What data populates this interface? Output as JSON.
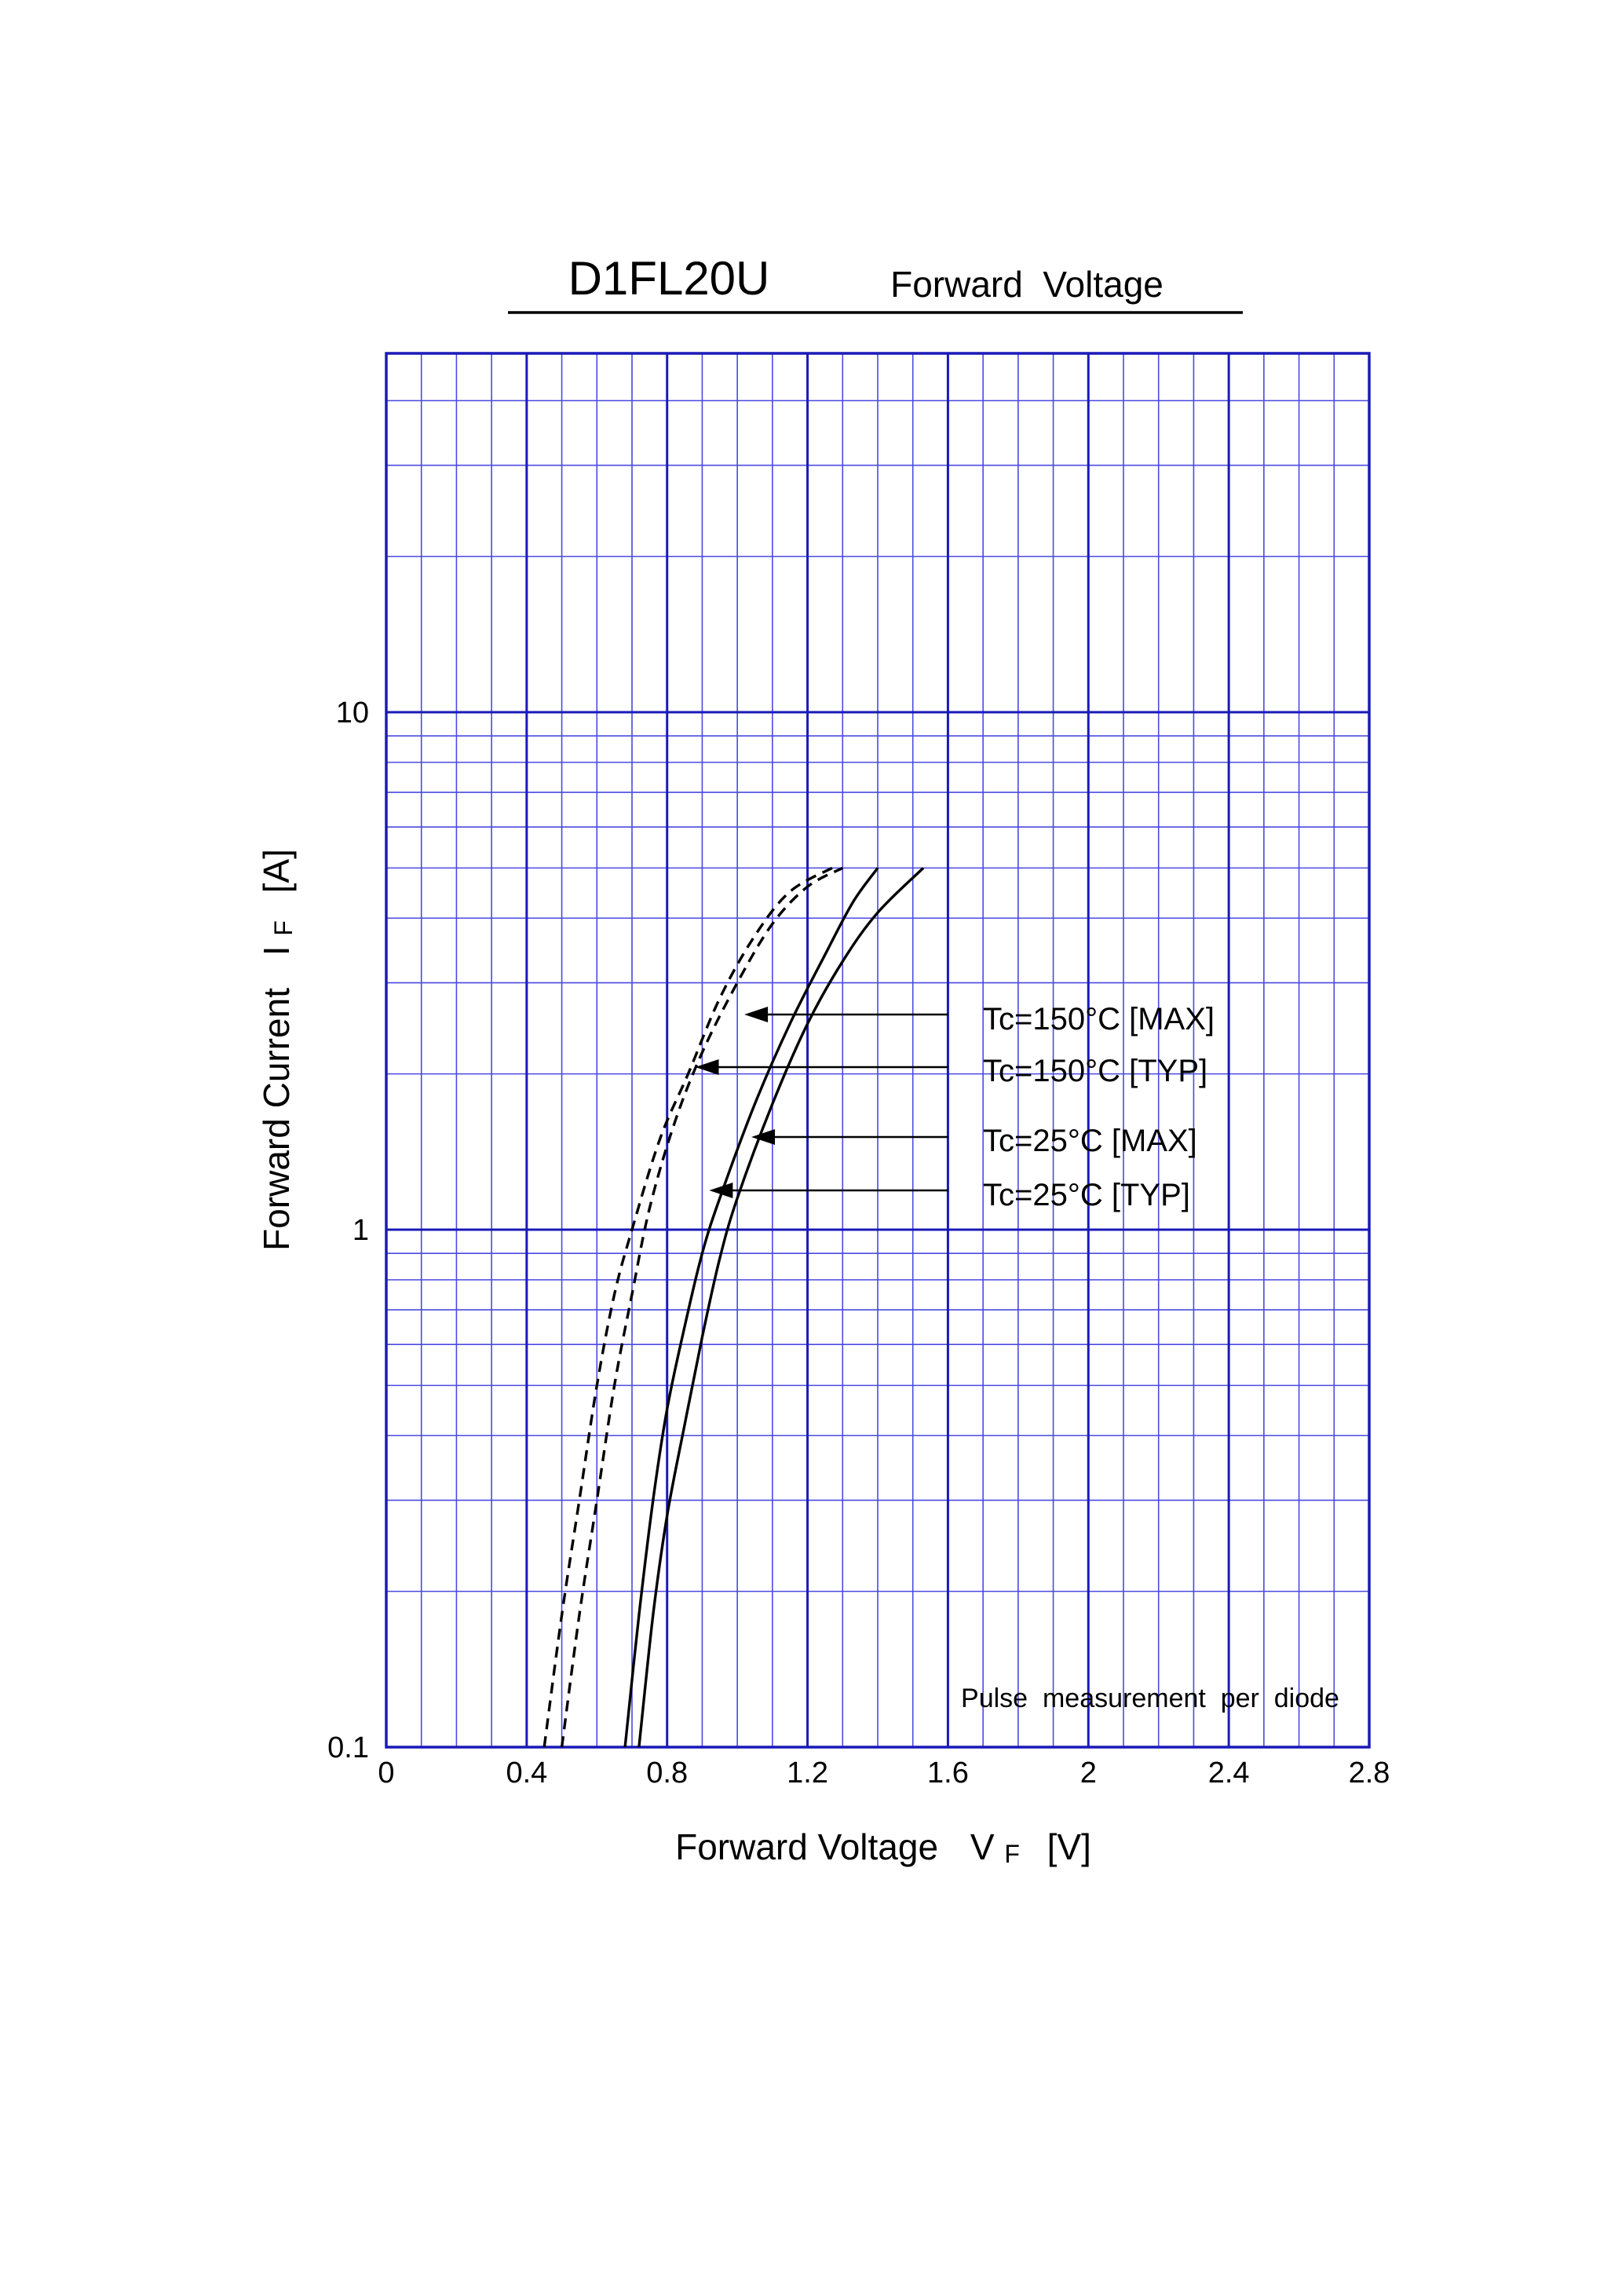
{
  "chart_data": {
    "type": "line",
    "title": "D1FL20U",
    "subtitle": "Forward  Voltage",
    "xlabel": "Forward Voltage",
    "xlabel_symbol": "V",
    "xlabel_subscript": "F",
    "xlabel_unit": "[V]",
    "ylabel": "Forward Current",
    "ylabel_symbol": "I",
    "ylabel_subscript": "F",
    "ylabel_unit": "[A]",
    "xlim": [
      0,
      2.8
    ],
    "ylim": [
      0.1,
      50
    ],
    "yscale": "log",
    "grid": true,
    "x_ticks": [
      "0",
      "0.4",
      "0.8",
      "1.2",
      "1.6",
      "2",
      "2.4",
      "2.8"
    ],
    "y_ticks": [
      "0.1",
      "1",
      "10"
    ],
    "note": "Pulse  measurement  per  diode",
    "series": [
      {
        "name": "Tc=150°C [MAX]",
        "style": "dashed",
        "points": [
          [
            0.5,
            0.1
          ],
          [
            0.55,
            0.18
          ],
          [
            0.6,
            0.3
          ],
          [
            0.65,
            0.5
          ],
          [
            0.7,
            0.75
          ],
          [
            0.75,
            1.1
          ],
          [
            0.82,
            1.6
          ],
          [
            0.9,
            2.2
          ],
          [
            1.0,
            3.0
          ],
          [
            1.1,
            3.9
          ],
          [
            1.2,
            4.6
          ],
          [
            1.3,
            5.0
          ]
        ]
      },
      {
        "name": "Tc=150°C [TYP]",
        "style": "dashed",
        "points": [
          [
            0.45,
            0.1
          ],
          [
            0.5,
            0.18
          ],
          [
            0.55,
            0.3
          ],
          [
            0.6,
            0.5
          ],
          [
            0.65,
            0.75
          ],
          [
            0.7,
            1.0
          ],
          [
            0.78,
            1.5
          ],
          [
            0.86,
            2.0
          ],
          [
            0.95,
            2.8
          ],
          [
            1.05,
            3.7
          ],
          [
            1.15,
            4.5
          ],
          [
            1.27,
            5.0
          ]
        ]
      },
      {
        "name": "Tc=25°C [MAX]",
        "style": "solid",
        "points": [
          [
            0.72,
            0.1
          ],
          [
            0.76,
            0.18
          ],
          [
            0.8,
            0.28
          ],
          [
            0.85,
            0.42
          ],
          [
            0.9,
            0.62
          ],
          [
            0.95,
            0.88
          ],
          [
            1.0,
            1.15
          ],
          [
            1.1,
            1.75
          ],
          [
            1.2,
            2.5
          ],
          [
            1.3,
            3.3
          ],
          [
            1.4,
            4.1
          ],
          [
            1.53,
            5.0
          ]
        ]
      },
      {
        "name": "Tc=25°C [TYP]",
        "style": "solid",
        "points": [
          [
            0.68,
            0.1
          ],
          [
            0.72,
            0.18
          ],
          [
            0.76,
            0.3
          ],
          [
            0.8,
            0.45
          ],
          [
            0.85,
            0.65
          ],
          [
            0.9,
            0.9
          ],
          [
            0.95,
            1.15
          ],
          [
            1.05,
            1.75
          ],
          [
            1.15,
            2.5
          ],
          [
            1.25,
            3.4
          ],
          [
            1.33,
            4.3
          ],
          [
            1.4,
            5.0
          ]
        ]
      }
    ],
    "annotations": [
      {
        "label": "Tc=150°C [MAX]",
        "target": [
          1.02,
          2.5
        ]
      },
      {
        "label": "Tc=150°C [TYP]",
        "target": [
          0.88,
          2.0
        ]
      },
      {
        "label": "Tc=25°C [MAX]",
        "target": [
          1.04,
          1.4
        ]
      },
      {
        "label": "Tc=25°C [TYP]",
        "target": [
          0.92,
          1.1
        ]
      }
    ]
  }
}
